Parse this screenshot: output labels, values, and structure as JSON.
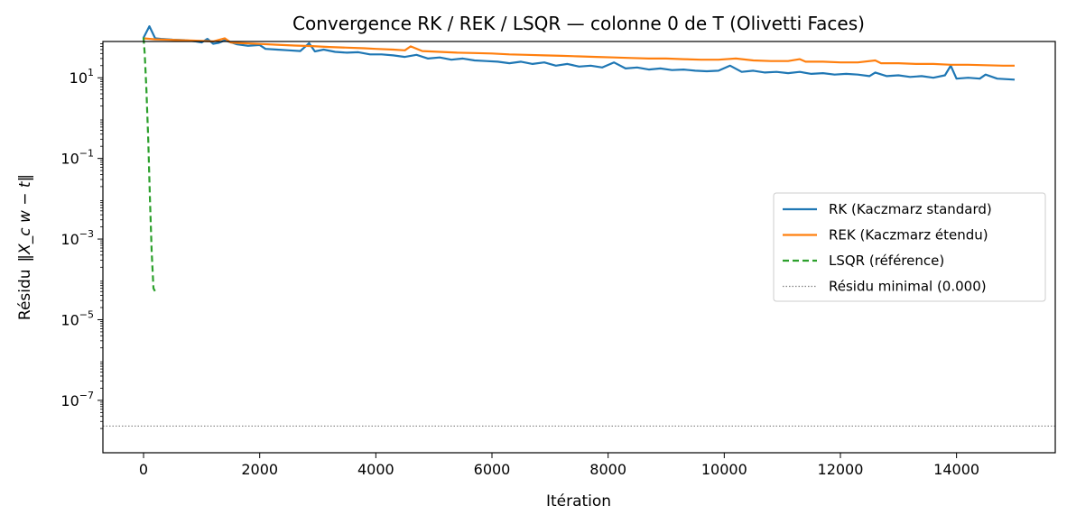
{
  "chart_data": {
    "type": "line",
    "title": "Convergence RK / REK / LSQR — colonne 0 de T (Olivetti Faces)",
    "xlabel": "Itération",
    "ylabel_prefix": "Résidu",
    "ylabel_math": "‖X_c w − t‖",
    "y_scale": "log",
    "xlim": [
      -700,
      15700
    ],
    "ylim_exponent": [
      -8.3,
      1.9
    ],
    "x_ticks": [
      0,
      2000,
      4000,
      6000,
      8000,
      10000,
      12000,
      14000
    ],
    "x_tick_labels": [
      "0",
      "2000",
      "4000",
      "6000",
      "8000",
      "10000",
      "12000",
      "14000"
    ],
    "y_ticks_exponent": [
      1,
      -1,
      -3,
      -5,
      -7
    ],
    "legend_position": "center-right",
    "series": [
      {
        "name": "RK  (Kaczmarz standard)",
        "color": "#1f77b4",
        "style": "solid",
        "points": [
          [
            0,
            98
          ],
          [
            100,
            190
          ],
          [
            200,
            95
          ],
          [
            300,
            92
          ],
          [
            500,
            88
          ],
          [
            700,
            86
          ],
          [
            900,
            80
          ],
          [
            1000,
            75
          ],
          [
            1100,
            92
          ],
          [
            1200,
            70
          ],
          [
            1300,
            74
          ],
          [
            1400,
            85
          ],
          [
            1600,
            68
          ],
          [
            1800,
            62
          ],
          [
            2000,
            65
          ],
          [
            2100,
            52
          ],
          [
            2300,
            50
          ],
          [
            2500,
            48
          ],
          [
            2700,
            46
          ],
          [
            2850,
            72
          ],
          [
            2950,
            45
          ],
          [
            3100,
            50
          ],
          [
            3300,
            44
          ],
          [
            3500,
            42
          ],
          [
            3700,
            43
          ],
          [
            3900,
            38
          ],
          [
            4100,
            38
          ],
          [
            4300,
            36
          ],
          [
            4500,
            33
          ],
          [
            4700,
            37
          ],
          [
            4900,
            30
          ],
          [
            5100,
            32
          ],
          [
            5300,
            28
          ],
          [
            5500,
            30
          ],
          [
            5700,
            27
          ],
          [
            5900,
            26
          ],
          [
            6100,
            25
          ],
          [
            6300,
            23
          ],
          [
            6500,
            25
          ],
          [
            6700,
            22
          ],
          [
            6900,
            24
          ],
          [
            7100,
            20
          ],
          [
            7300,
            22
          ],
          [
            7500,
            19
          ],
          [
            7700,
            20
          ],
          [
            7900,
            18
          ],
          [
            8100,
            24
          ],
          [
            8300,
            17
          ],
          [
            8500,
            18
          ],
          [
            8700,
            16
          ],
          [
            8900,
            17
          ],
          [
            9100,
            15.5
          ],
          [
            9300,
            16
          ],
          [
            9500,
            15
          ],
          [
            9700,
            14.5
          ],
          [
            9900,
            15
          ],
          [
            10100,
            20
          ],
          [
            10300,
            14
          ],
          [
            10500,
            15
          ],
          [
            10700,
            13.5
          ],
          [
            10900,
            14
          ],
          [
            11100,
            13
          ],
          [
            11300,
            14
          ],
          [
            11500,
            12.5
          ],
          [
            11700,
            13
          ],
          [
            11900,
            12
          ],
          [
            12100,
            12.5
          ],
          [
            12300,
            12
          ],
          [
            12500,
            11
          ],
          [
            12600,
            13.5
          ],
          [
            12800,
            11
          ],
          [
            13000,
            11.5
          ],
          [
            13200,
            10.5
          ],
          [
            13400,
            11
          ],
          [
            13600,
            10
          ],
          [
            13800,
            11.5
          ],
          [
            13900,
            20
          ],
          [
            14000,
            9.5
          ],
          [
            14200,
            10
          ],
          [
            14400,
            9.5
          ],
          [
            14500,
            12
          ],
          [
            14700,
            9.5
          ],
          [
            15000,
            9
          ]
        ]
      },
      {
        "name": "REK (Kaczmarz étendu)",
        "color": "#ff7f0e",
        "style": "solid",
        "points": [
          [
            0,
            95
          ],
          [
            200,
            90
          ],
          [
            400,
            88
          ],
          [
            600,
            86
          ],
          [
            800,
            84
          ],
          [
            1000,
            82
          ],
          [
            1200,
            80
          ],
          [
            1400,
            95
          ],
          [
            1500,
            75
          ],
          [
            1700,
            72
          ],
          [
            2000,
            69
          ],
          [
            2300,
            66
          ],
          [
            2600,
            63
          ],
          [
            2900,
            61
          ],
          [
            3200,
            58
          ],
          [
            3500,
            56
          ],
          [
            3800,
            54
          ],
          [
            4000,
            52
          ],
          [
            4300,
            50
          ],
          [
            4500,
            48
          ],
          [
            4600,
            60
          ],
          [
            4800,
            46
          ],
          [
            5100,
            44
          ],
          [
            5400,
            42
          ],
          [
            5700,
            41
          ],
          [
            6000,
            40
          ],
          [
            6300,
            38
          ],
          [
            6600,
            37
          ],
          [
            6900,
            36
          ],
          [
            7200,
            35
          ],
          [
            7500,
            34
          ],
          [
            7800,
            33
          ],
          [
            8100,
            32
          ],
          [
            8400,
            31
          ],
          [
            8700,
            30
          ],
          [
            9000,
            30
          ],
          [
            9300,
            29
          ],
          [
            9600,
            28
          ],
          [
            9900,
            28
          ],
          [
            10200,
            30
          ],
          [
            10500,
            27
          ],
          [
            10800,
            26
          ],
          [
            11100,
            26
          ],
          [
            11300,
            29
          ],
          [
            11400,
            25
          ],
          [
            11700,
            25
          ],
          [
            12000,
            24
          ],
          [
            12300,
            24
          ],
          [
            12600,
            27
          ],
          [
            12700,
            23
          ],
          [
            13000,
            23
          ],
          [
            13300,
            22
          ],
          [
            13600,
            22
          ],
          [
            13900,
            21
          ],
          [
            14200,
            21
          ],
          [
            14500,
            20.5
          ],
          [
            14800,
            20
          ],
          [
            15000,
            20
          ]
        ]
      },
      {
        "name": "LSQR (référence)",
        "color": "#2ca02c",
        "style": "dashed",
        "points": [
          [
            0,
            100
          ],
          [
            20,
            40
          ],
          [
            50,
            5
          ],
          [
            80,
            0.3
          ],
          [
            110,
            0.01
          ],
          [
            140,
            0.0005
          ],
          [
            170,
            6e-05
          ],
          [
            200,
            5e-05
          ],
          [
            220,
            5e-05
          ]
        ]
      },
      {
        "name": "Résidu minimal (0.000)",
        "color": "#808080",
        "style": "dotted",
        "hline": 2.3e-08
      }
    ]
  }
}
